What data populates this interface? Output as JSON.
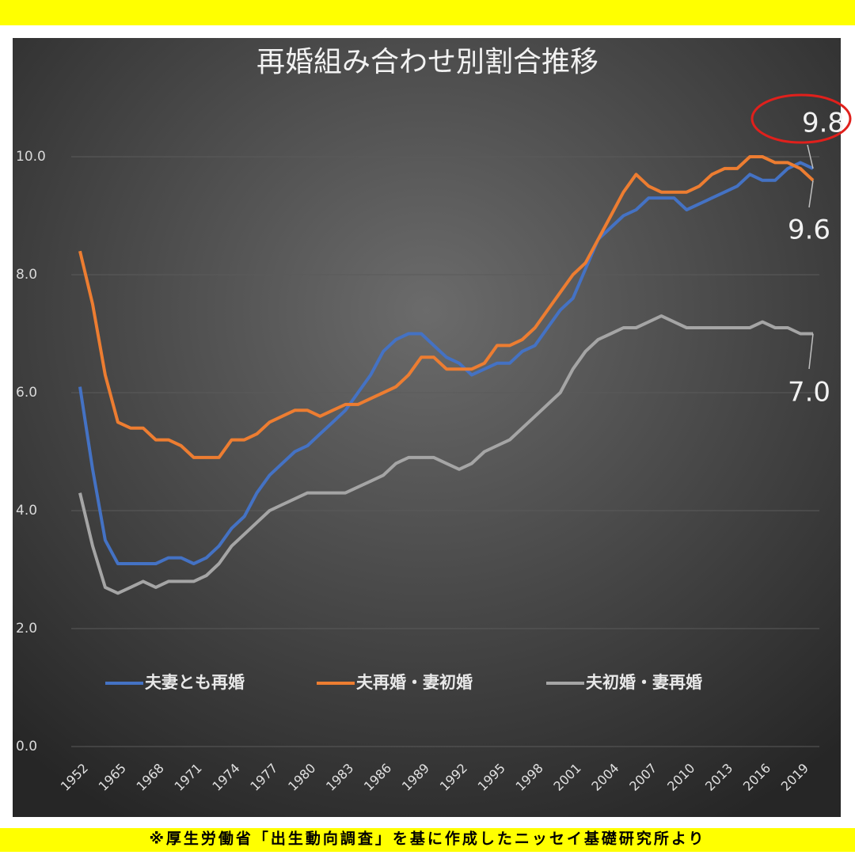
{
  "chart_data": {
    "type": "line",
    "title": "再婚組み合わせ別割合推移",
    "footer": "※厚生労働省「出生動向調査」を基に作成したニッセイ基礎研究所より",
    "categories": [
      "1952",
      null,
      null,
      "1965",
      null,
      null,
      "1968",
      null,
      null,
      "1971",
      null,
      null,
      "1974",
      null,
      null,
      "1977",
      null,
      null,
      "1980",
      null,
      null,
      "1983",
      null,
      null,
      "1986",
      null,
      null,
      "1989",
      null,
      null,
      "1992",
      null,
      null,
      "1995",
      null,
      null,
      "1998",
      null,
      null,
      "2001",
      null,
      null,
      "2004",
      null,
      null,
      "2007",
      null,
      null,
      "2010",
      null,
      null,
      "2013",
      null,
      null,
      "2016",
      null,
      null,
      "2019",
      null
    ],
    "ylim": [
      0,
      10.6
    ],
    "yticks": [
      {
        "value": 0,
        "label": "0.0"
      },
      {
        "value": 2,
        "label": "2.0"
      },
      {
        "value": 4,
        "label": "4.0"
      },
      {
        "value": 6,
        "label": "6.0"
      },
      {
        "value": 8,
        "label": "8.0"
      },
      {
        "value": 10,
        "label": "10.0"
      }
    ],
    "grid": true,
    "legend": "bottom",
    "series": [
      {
        "name": "夫妻とも再婚",
        "color": "#4472c4",
        "values": [
          6.1,
          4.7,
          3.5,
          3.1,
          3.1,
          3.1,
          3.1,
          3.2,
          3.2,
          3.1,
          3.2,
          3.4,
          3.7,
          3.9,
          4.3,
          4.6,
          4.8,
          5.0,
          5.1,
          5.3,
          5.5,
          5.7,
          6.0,
          6.3,
          6.7,
          6.9,
          7.0,
          7.0,
          6.8,
          6.6,
          6.5,
          6.3,
          6.4,
          6.5,
          6.5,
          6.7,
          6.8,
          7.1,
          7.4,
          7.6,
          8.1,
          8.6,
          8.8,
          9.0,
          9.1,
          9.3,
          9.3,
          9.3,
          9.1,
          9.2,
          9.3,
          9.4,
          9.5,
          9.7,
          9.6,
          9.6,
          9.8,
          9.9,
          9.8
        ],
        "value_labels": [
          null,
          null,
          null,
          null,
          null,
          null,
          null,
          null,
          null,
          null,
          null,
          null,
          null,
          null,
          null,
          null,
          null,
          null,
          null,
          null,
          null,
          null,
          null,
          null,
          null,
          null,
          null,
          null,
          null,
          null,
          null,
          null,
          null,
          null,
          null,
          null,
          null,
          null,
          null,
          null,
          null,
          null,
          null,
          null,
          null,
          null,
          null,
          null,
          null,
          null,
          null,
          null,
          null,
          null,
          null,
          null,
          null,
          null,
          "9.8"
        ]
      },
      {
        "name": "夫再婚・妻初婚",
        "color": "#ed7d31",
        "values": [
          8.4,
          7.5,
          6.3,
          5.5,
          5.4,
          5.4,
          5.2,
          5.2,
          5.1,
          4.9,
          4.9,
          4.9,
          5.2,
          5.2,
          5.3,
          5.5,
          5.6,
          5.7,
          5.7,
          5.6,
          5.7,
          5.8,
          5.8,
          5.9,
          6.0,
          6.1,
          6.3,
          6.6,
          6.6,
          6.4,
          6.4,
          6.4,
          6.5,
          6.8,
          6.8,
          6.9,
          7.1,
          7.4,
          7.7,
          8.0,
          8.2,
          8.6,
          9.0,
          9.4,
          9.7,
          9.5,
          9.4,
          9.4,
          9.4,
          9.5,
          9.7,
          9.8,
          9.8,
          10.0,
          10.0,
          9.9,
          9.9,
          9.8,
          9.6
        ],
        "value_labels": [
          null,
          null,
          null,
          null,
          null,
          null,
          null,
          null,
          null,
          null,
          null,
          null,
          null,
          null,
          null,
          null,
          null,
          null,
          null,
          null,
          null,
          null,
          null,
          null,
          null,
          null,
          null,
          null,
          null,
          null,
          null,
          null,
          null,
          null,
          null,
          null,
          null,
          null,
          null,
          null,
          null,
          null,
          null,
          null,
          null,
          null,
          null,
          null,
          null,
          null,
          null,
          null,
          null,
          null,
          null,
          null,
          null,
          null,
          "9.6"
        ]
      },
      {
        "name": "夫初婚・妻再婚",
        "color": "#a5a5a5",
        "values": [
          4.3,
          3.4,
          2.7,
          2.6,
          2.7,
          2.8,
          2.7,
          2.8,
          2.8,
          2.8,
          2.9,
          3.1,
          3.4,
          3.6,
          3.8,
          4.0,
          4.1,
          4.2,
          4.3,
          4.3,
          4.3,
          4.3,
          4.4,
          4.5,
          4.6,
          4.8,
          4.9,
          4.9,
          4.9,
          4.8,
          4.7,
          4.8,
          5.0,
          5.1,
          5.2,
          5.4,
          5.6,
          5.8,
          6.0,
          6.4,
          6.7,
          6.9,
          7.0,
          7.1,
          7.1,
          7.2,
          7.3,
          7.2,
          7.1,
          7.1,
          7.1,
          7.1,
          7.1,
          7.1,
          7.2,
          7.1,
          7.1,
          7.0,
          7.0
        ],
        "value_labels": [
          null,
          null,
          null,
          null,
          null,
          null,
          null,
          null,
          null,
          null,
          null,
          null,
          null,
          null,
          null,
          null,
          null,
          null,
          null,
          null,
          null,
          null,
          null,
          null,
          null,
          null,
          null,
          null,
          null,
          null,
          null,
          null,
          null,
          null,
          null,
          null,
          null,
          null,
          null,
          null,
          null,
          null,
          null,
          null,
          null,
          null,
          null,
          null,
          null,
          null,
          null,
          null,
          null,
          null,
          null,
          null,
          null,
          null,
          "7.0"
        ]
      }
    ]
  }
}
